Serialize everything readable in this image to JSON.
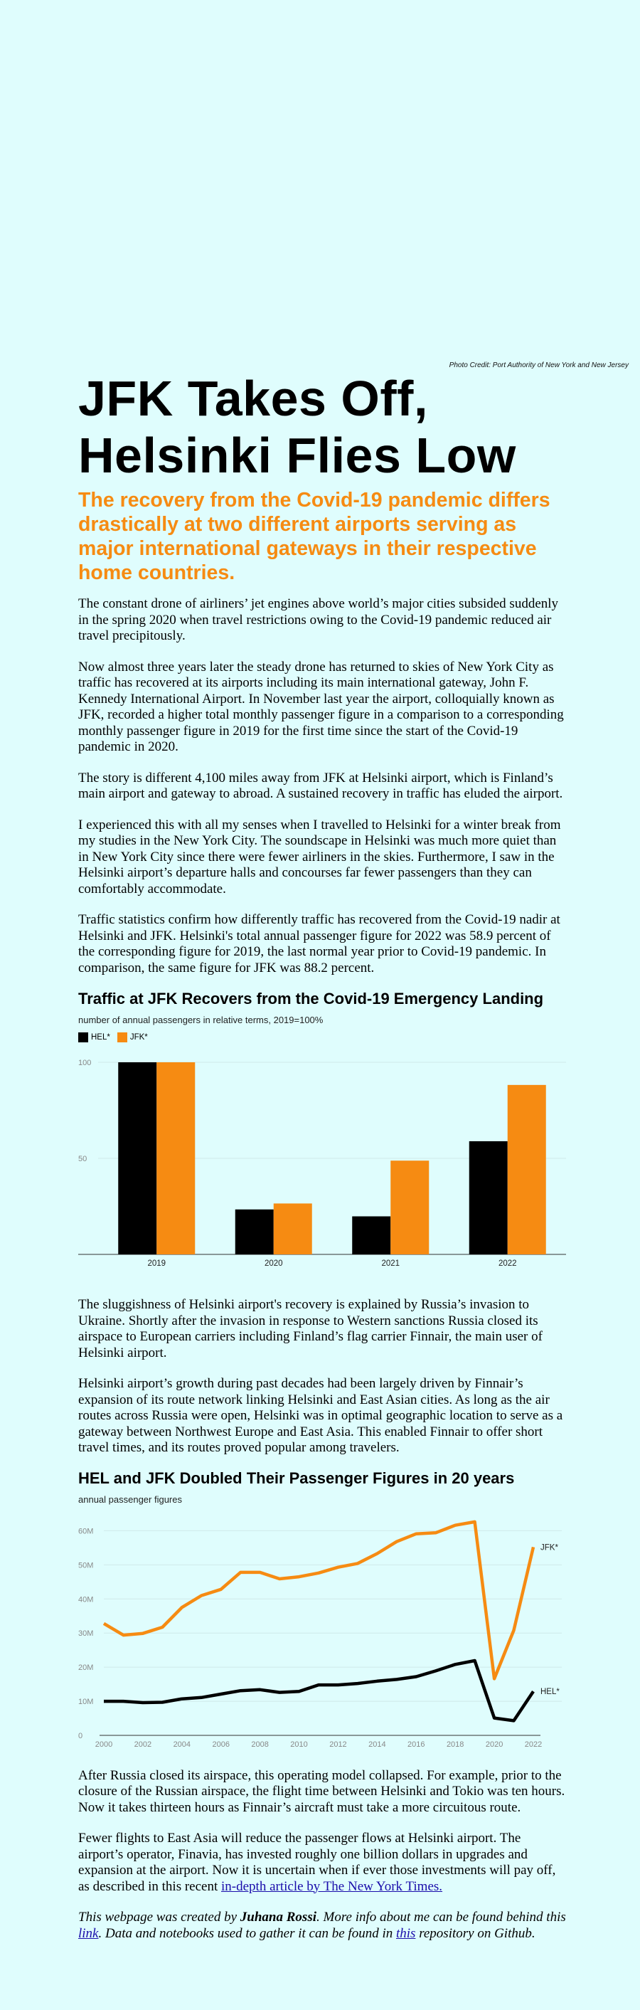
{
  "photo_credit": "Photo Credit: Port Authority of New York and New Jersey",
  "title_line1": "JFK Takes Off,",
  "title_line2": "Helsinki Flies Low",
  "lede": "The recovery from the Covid-19 pandemic differs drastically at two different airports serving as major international gateways in their respective home countries.",
  "paragraphs_1": [
    "The constant drone of airliners’ jet engines above world’s major cities subsided suddenly in the spring 2020 when travel restrictions owing to the Covid-19 pandemic reduced air travel precipitously.",
    "Now almost three years later the steady drone has returned to skies of New York City as traffic has recovered at its airports including its main international gateway, John F. Kennedy International Airport. In November last year the airport, colloquially known as JFK, recorded a higher total monthly passenger figure in a comparison to a corresponding monthly passenger figure in 2019 for the first time since the start of the Covid-19 pandemic in 2020.",
    "The story is different 4,100 miles away from JFK at Helsinki airport, which is Finland’s main airport and gateway to abroad. A sustained recovery in traffic has eluded the airport.",
    "I experienced this with all my senses when I travelled to Helsinki for a winter break from my studies in the New York City. The soundscape in Helsinki was much more quiet than in New York City since there were fewer airliners in the skies. Furthermore, I saw in the Helsinki airport’s departure halls and concourses far fewer passengers than they can comfortably accommodate.",
    "Traffic statistics confirm how differently traffic has recovered from the Covid-19 nadir at Helsinki and JFK. Helsinki's total annual passenger figure for 2022 was 58.9 percent of the corresponding figure for 2019, the last normal year prior to Covid-19 pandemic. In comparison, the same figure for JFK was 88.2 percent."
  ],
  "paragraphs_2": [
    "The sluggishness of Helsinki airport's recovery is explained by Russia’s invasion to Ukraine. Shortly after the invasion in response to Western sanctions Russia closed its airspace to European carriers including Finland’s flag carrier Finnair, the main user of Helsinki airport.",
    "Helsinki airport’s growth during past decades had been largely driven by Finnair’s expansion of its route network linking Helsinki and East Asian cities. As long as the air routes across Russia were open, Helsinki was in optimal geographic location to serve as a gateway between Northwest Europe and East Asia. This enabled Finnair to offer short travel times, and its routes proved popular among travelers."
  ],
  "paragraphs_3": [
    "After Russia closed its airspace, this operating model collapsed. For example, prior to the closure of the Russian airspace, the flight time between Helsinki and Tokio was ten hours. Now it takes thirteen hours as Finnair’s aircraft must take a more circuitous route."
  ],
  "para_last": {
    "text": "Fewer flights to East Asia will reduce the passenger flows at Helsinki airport. The airport’s operator, Finavia, has invested roughly one billion dollars in upgrades and expansion at the airport. Now it is uncertain when if ever those investments will pay off, as described in this recent ",
    "link": "in-depth article by The New York Times.",
    "after": ""
  },
  "signature": {
    "pre": "This webpage was created by ",
    "author": "Juhana Rossi",
    "mid": ". More info about me can be found behind this ",
    "link1": "link",
    "mid2": ". Data and notebooks used to gather it can be found in ",
    "link2": "this",
    "post": " repository on Github."
  },
  "chart_data": [
    {
      "type": "bar",
      "title": "Traffic at JFK Recovers from the Covid-19 Emergency Landing",
      "subtitle": "number of annual passengers in relative terms, 2019=100%",
      "categories": [
        "2019",
        "2020",
        "2021",
        "2022"
      ],
      "series": [
        {
          "name": "HEL*",
          "color": "#000000",
          "values": [
            100,
            23.4,
            19.8,
            58.9
          ]
        },
        {
          "name": "JFK*",
          "color": "#f68b12",
          "values": [
            100,
            26.5,
            48.8,
            88.2
          ]
        }
      ],
      "yticks": [
        "0",
        "50",
        "100"
      ],
      "ylim": [
        0,
        100
      ],
      "legend": "top-left",
      "grid": true
    },
    {
      "type": "line",
      "title": "HEL and JFK Doubled Their Passenger Figures in 20 years",
      "subtitle": "annual passenger figures",
      "x": [
        2000,
        2001,
        2002,
        2003,
        2004,
        2005,
        2006,
        2007,
        2008,
        2009,
        2010,
        2011,
        2012,
        2013,
        2014,
        2015,
        2016,
        2017,
        2018,
        2019,
        2020,
        2021,
        2022
      ],
      "xticks": [
        "2000",
        "2002",
        "2004",
        "2006",
        "2008",
        "2010",
        "2012",
        "2014",
        "2016",
        "2018",
        "2020",
        "2022"
      ],
      "yticks": [
        "0",
        "10M",
        "20M",
        "30M",
        "40M",
        "50M",
        "60M"
      ],
      "ylim": [
        0,
        63
      ],
      "series": [
        {
          "name": "JFK*",
          "color": "#f68b12",
          "values": [
            32.8,
            29.4,
            29.9,
            31.7,
            37.5,
            41.0,
            42.8,
            47.8,
            47.8,
            45.9,
            46.5,
            47.6,
            49.3,
            50.4,
            53.3,
            56.8,
            59.1,
            59.4,
            61.6,
            62.6,
            16.6,
            30.8,
            55.2
          ]
        },
        {
          "name": "HEL*",
          "color": "#000000",
          "values": [
            10.0,
            10.0,
            9.6,
            9.7,
            10.7,
            11.1,
            12.1,
            13.1,
            13.4,
            12.6,
            12.9,
            14.8,
            14.8,
            15.2,
            15.9,
            16.4,
            17.2,
            18.9,
            20.8,
            21.9,
            5.1,
            4.3,
            12.9
          ]
        }
      ],
      "grid": true
    }
  ]
}
